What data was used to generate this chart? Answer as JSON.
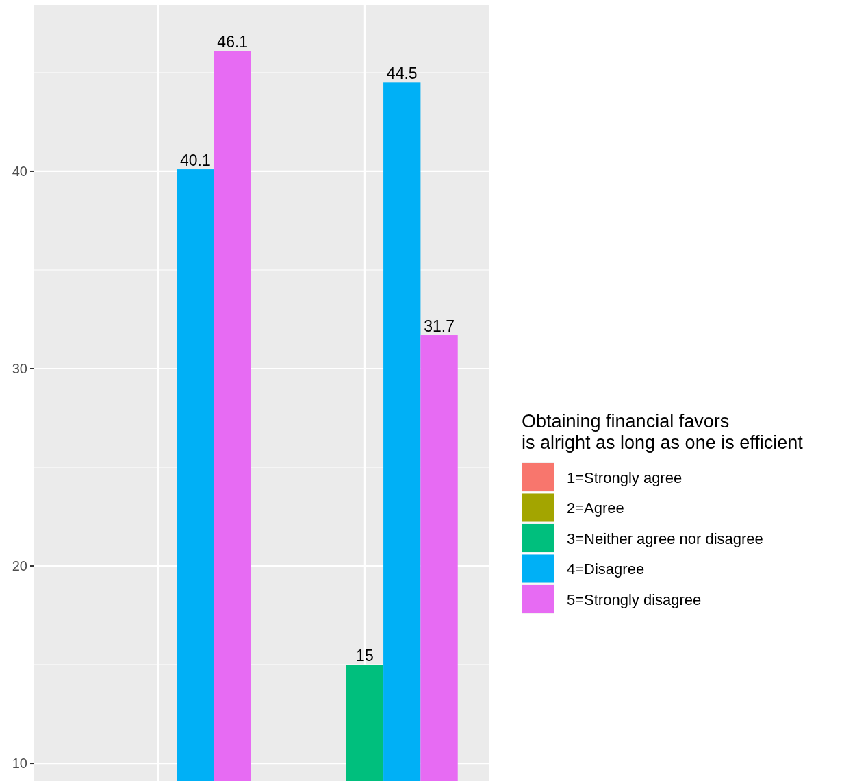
{
  "chart_data": {
    "type": "bar",
    "legend_title": "Obtaining financial favors\nis alright as long as one is efficient",
    "categories": [
      null,
      null
    ],
    "series": [
      {
        "name": "1=Strongly agree",
        "color": "#f8766d",
        "values": [
          null,
          null
        ]
      },
      {
        "name": "2=Agree",
        "color": "#a3a500",
        "values": [
          null,
          null
        ]
      },
      {
        "name": "3=Neither agree nor disagree",
        "color": "#00bf7d",
        "values": [
          null,
          15
        ]
      },
      {
        "name": "4=Disagree",
        "color": "#00b0f6",
        "values": [
          40.1,
          44.5
        ]
      },
      {
        "name": "5=Strongly disagree",
        "color": "#e76bf3",
        "values": [
          46.1,
          31.7
        ]
      }
    ],
    "ylim": [
      9.1,
      48.4
    ],
    "yticks": [
      10,
      20,
      30,
      40
    ],
    "grid": true,
    "legend": "right",
    "data_labels": true
  }
}
